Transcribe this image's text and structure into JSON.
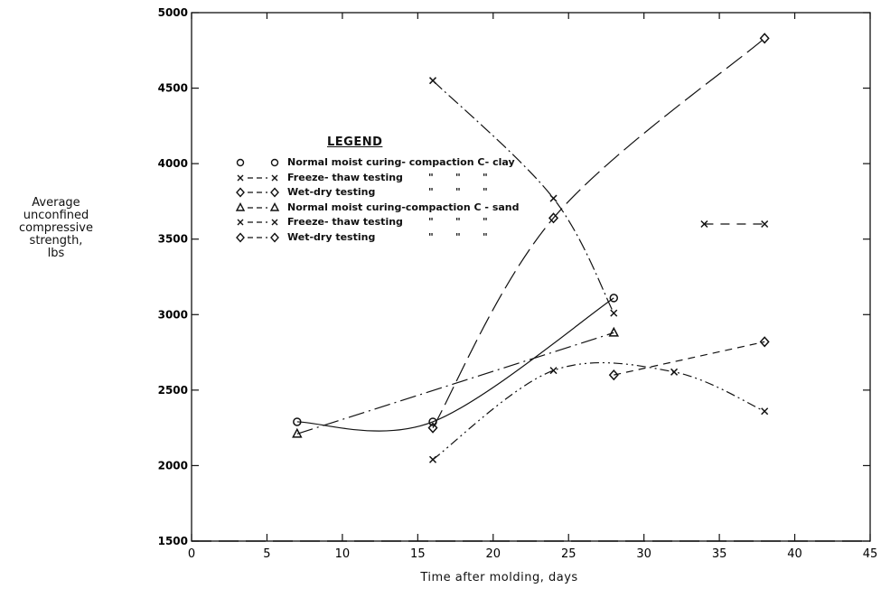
{
  "chart_data": {
    "type": "line",
    "title": "",
    "xlabel": "Time after molding, days",
    "ylabel_lines": [
      "Average",
      "unconfined",
      "compressive",
      "strength,",
      "lbs"
    ],
    "xlim": [
      0,
      45
    ],
    "ylim": [
      1500,
      5000
    ],
    "x_ticks": [
      0,
      5,
      10,
      15,
      20,
      25,
      30,
      35,
      40,
      45
    ],
    "y_ticks": [
      1500,
      2000,
      2500,
      3000,
      3500,
      4000,
      4500,
      5000
    ],
    "grid": false,
    "legend": {
      "title": "LEGEND",
      "placement": "upper-left inside",
      "ditto_mark": "\""
    },
    "series": [
      {
        "name": "Normal moist curing-compaction C-clay",
        "marker": "circle",
        "line": "solid",
        "points": [
          [
            7,
            2290
          ],
          [
            16,
            2290
          ],
          [
            28,
            3110
          ]
        ]
      },
      {
        "name": "Freeze-thaw testing",
        "marker": "x",
        "line": "dash-dot",
        "points": [
          [
            16,
            4550
          ],
          [
            24,
            3770
          ],
          [
            28,
            3010
          ]
        ]
      },
      {
        "name": "Wet-dry testing",
        "marker": "diamond",
        "line": "long-dash",
        "points": [
          [
            16,
            2250
          ],
          [
            24,
            3640
          ],
          [
            38,
            4830
          ]
        ]
      },
      {
        "name": "Normal moist curing-compaction C-sand",
        "marker": "triangle",
        "line": "dash-dot-long",
        "points": [
          [
            7,
            2210
          ],
          [
            28,
            2880
          ]
        ]
      },
      {
        "name": "Freeze-thaw testing",
        "marker": "x",
        "line": "dash-dot-dot",
        "points": [
          [
            16,
            2040
          ],
          [
            24,
            2630
          ],
          [
            32,
            2620
          ],
          [
            38,
            2360
          ]
        ]
      },
      {
        "name": "Wet-dry testing",
        "marker": "diamond",
        "line": "dashed",
        "points": [
          [
            28,
            2600
          ],
          [
            38,
            2820
          ]
        ]
      }
    ],
    "extra_marks": [
      {
        "marker": "x",
        "points": [
          [
            34,
            3600
          ],
          [
            38,
            3600
          ]
        ]
      }
    ]
  },
  "legend_rows": [
    {
      "symbol": "circle",
      "text": "Normal moist curing- compaction C- clay",
      "dittos": 0
    },
    {
      "symbol": "x",
      "text": "Freeze- thaw testing",
      "dittos": 3
    },
    {
      "symbol": "diamond",
      "text": "Wet-dry testing",
      "dittos": 3
    },
    {
      "symbol": "triangle",
      "text": "Normal moist curing-compaction C - sand",
      "dittos": 0
    },
    {
      "symbol": "x",
      "text": "Freeze- thaw testing",
      "dittos": 3
    },
    {
      "symbol": "diamond",
      "text": "Wet-dry testing",
      "dittos": 3
    }
  ]
}
